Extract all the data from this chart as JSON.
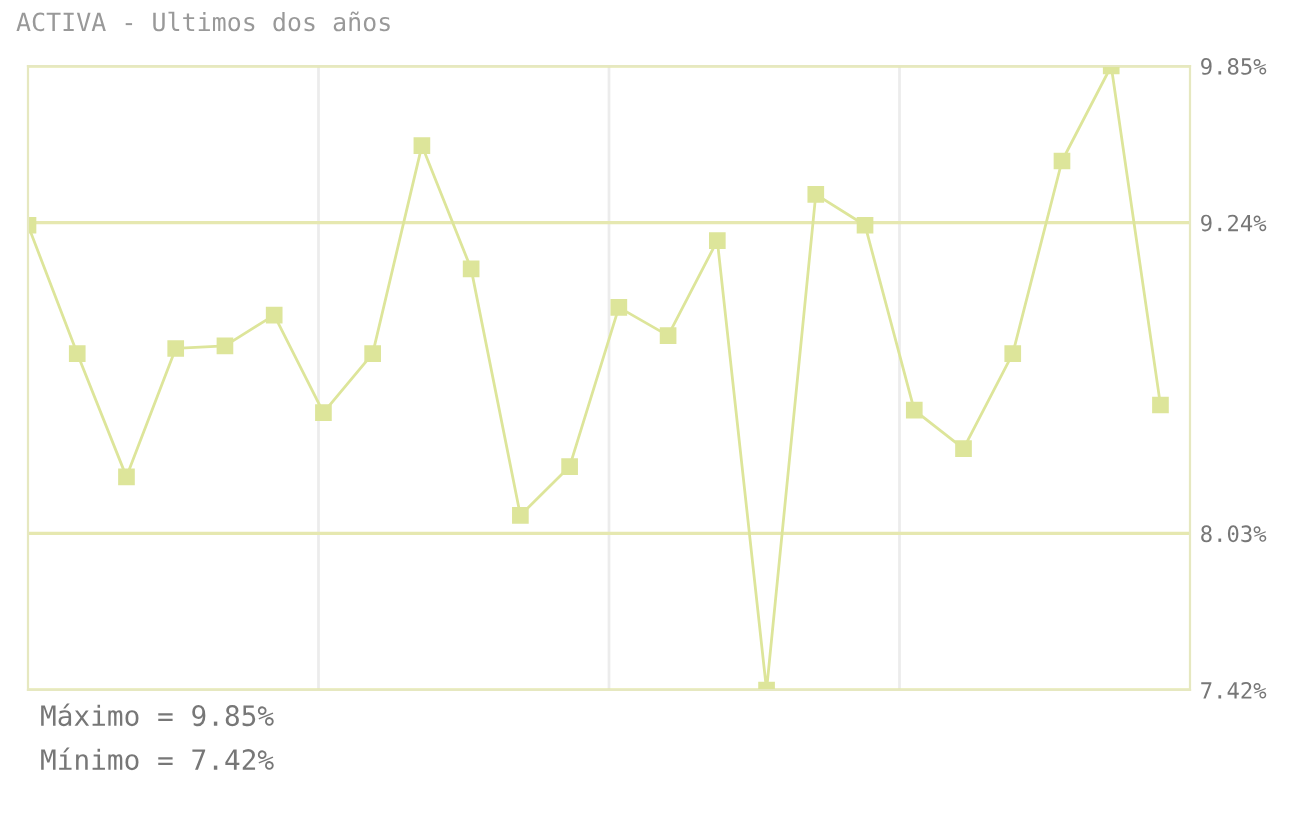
{
  "chart_data": {
    "type": "line",
    "title": "ACTIVA - Ultimos dos años",
    "categories": [
      null,
      null,
      null,
      null,
      null,
      null,
      null,
      null,
      null,
      null,
      null,
      null,
      null,
      null,
      null,
      null,
      null,
      null,
      null,
      null,
      null,
      null,
      null,
      null
    ],
    "series": [
      {
        "color": "#dde59a",
        "values": [
          9.23,
          8.73,
          8.25,
          8.75,
          8.76,
          8.88,
          8.5,
          8.73,
          9.54,
          9.06,
          8.1,
          8.29,
          8.91,
          8.8,
          9.17,
          7.42,
          9.35,
          9.23,
          8.51,
          8.36,
          8.73,
          9.48,
          9.85,
          8.53
        ]
      }
    ],
    "ylim": [
      7.42,
      9.85
    ],
    "yticks": [
      {
        "value": 7.42,
        "label": "7.42%"
      },
      {
        "value": 8.03,
        "label": "8.03%"
      },
      {
        "value": 9.24,
        "label": "9.24%"
      },
      {
        "value": 9.85,
        "label": "9.85%"
      }
    ],
    "grid": true,
    "marker": "square",
    "line_style": "solid",
    "tick_labels": "y",
    "annotations": [
      "Máximo = 9.85%",
      "Mínimo = 7.42%"
    ]
  }
}
